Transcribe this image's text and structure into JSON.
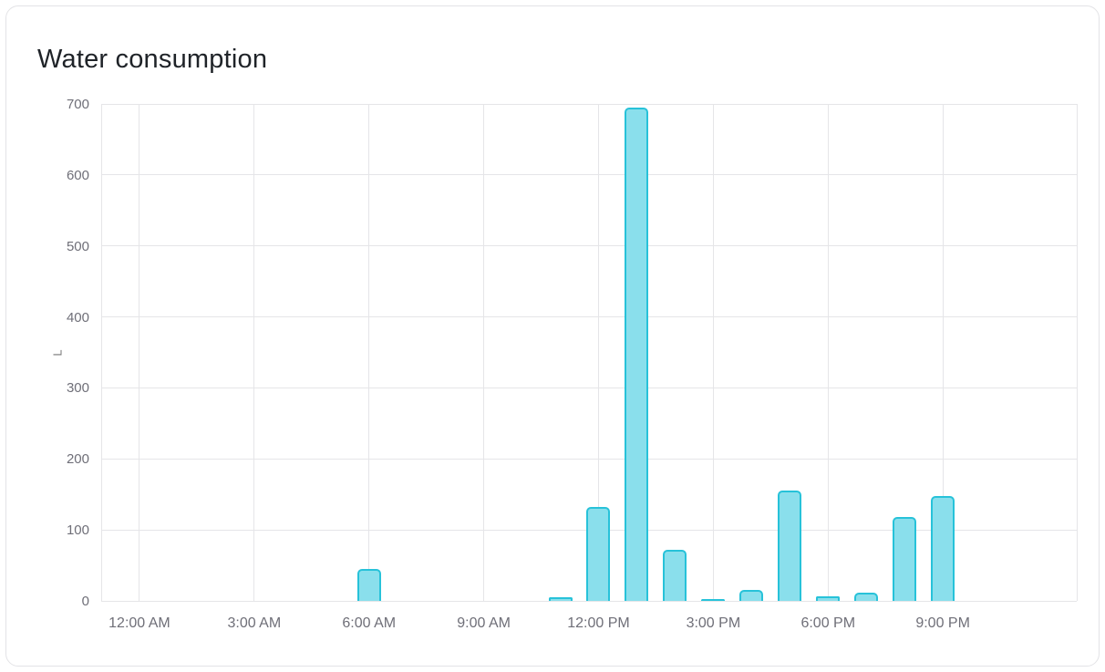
{
  "card": {
    "title": "Water consumption"
  },
  "chart_data": {
    "type": "bar",
    "title": "Water consumption",
    "xlabel": "",
    "ylabel": "L",
    "ylim": [
      0,
      700
    ],
    "y_ticks": [
      0,
      100,
      200,
      300,
      400,
      500,
      600,
      700
    ],
    "x_domain": [
      -1,
      24.5
    ],
    "x_tick_hours": [
      0,
      3,
      6,
      9,
      12,
      15,
      18,
      21
    ],
    "x_tick_labels": [
      "12:00 AM",
      "3:00 AM",
      "6:00 AM",
      "9:00 AM",
      "12:00 PM",
      "3:00 PM",
      "6:00 PM",
      "9:00 PM"
    ],
    "grid": true,
    "legend": "none",
    "series": [
      {
        "name": "Water consumption",
        "unit": "L",
        "points": [
          {
            "hour": 6,
            "label": "6:00 AM",
            "value": 45
          },
          {
            "hour": 11,
            "label": "11:00 AM",
            "value": 5
          },
          {
            "hour": 12,
            "label": "12:00 PM",
            "value": 132
          },
          {
            "hour": 13,
            "label": "1:00 PM",
            "value": 695
          },
          {
            "hour": 14,
            "label": "2:00 PM",
            "value": 72
          },
          {
            "hour": 15,
            "label": "3:00 PM",
            "value": 2
          },
          {
            "hour": 16,
            "label": "4:00 PM",
            "value": 16
          },
          {
            "hour": 17,
            "label": "5:00 PM",
            "value": 156
          },
          {
            "hour": 18,
            "label": "6:00 PM",
            "value": 7
          },
          {
            "hour": 19,
            "label": "7:00 PM",
            "value": 11
          },
          {
            "hour": 20,
            "label": "8:00 PM",
            "value": 118
          },
          {
            "hour": 21,
            "label": "9:00 PM",
            "value": 148
          }
        ]
      }
    ],
    "colors": {
      "bar_fill": "#8adfec",
      "bar_stroke": "#27c2d9",
      "grid": "#e5e5e8",
      "axis_text": "#6f6f78",
      "title_text": "#1f2328"
    }
  }
}
